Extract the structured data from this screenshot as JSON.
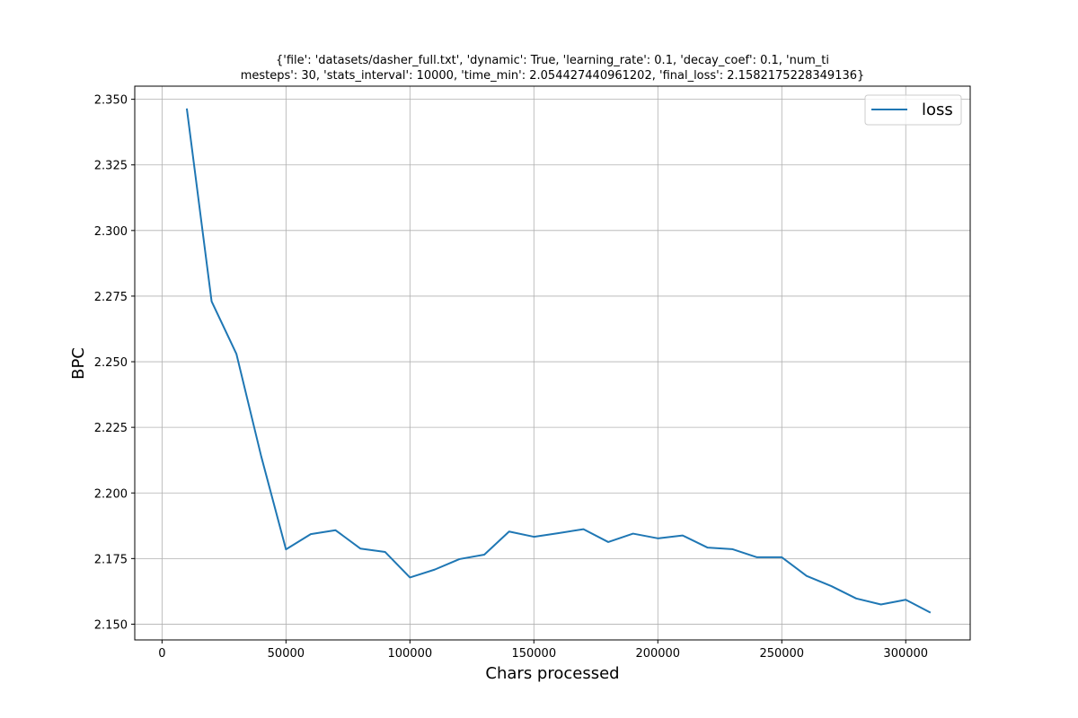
{
  "chart_data": {
    "type": "line",
    "title_lines": [
      "{'file': 'datasets/dasher_full.txt', 'dynamic': True, 'learning_rate': 0.1, 'decay_coef': 0.1, 'num_ti",
      "mesteps': 30, 'stats_interval': 10000, 'time_min': 2.054427440961202, 'final_loss': 2.1582175228349136}"
    ],
    "xlabel": "Chars processed",
    "ylabel": "BPC",
    "xlim": [
      -11000,
      326000
    ],
    "ylim": [
      2.144,
      2.355
    ],
    "xticks": [
      0,
      50000,
      100000,
      150000,
      200000,
      250000,
      300000
    ],
    "xtick_labels": [
      "0",
      "50000",
      "100000",
      "150000",
      "200000",
      "250000",
      "300000"
    ],
    "yticks": [
      2.15,
      2.175,
      2.2,
      2.225,
      2.25,
      2.275,
      2.3,
      2.325,
      2.35
    ],
    "ytick_labels": [
      "2.150",
      "2.175",
      "2.200",
      "2.225",
      "2.250",
      "2.275",
      "2.300",
      "2.325",
      "2.350"
    ],
    "grid": true,
    "legend_position": "upper right",
    "series": [
      {
        "name": "loss",
        "color": "#1f77b4",
        "x": [
          10000,
          20000,
          30000,
          40000,
          50000,
          60000,
          70000,
          80000,
          90000,
          100000,
          110000,
          120000,
          130000,
          140000,
          150000,
          160000,
          170000,
          180000,
          190000,
          200000,
          210000,
          220000,
          230000,
          240000,
          250000,
          260000,
          270000,
          280000,
          290000,
          300000,
          310000
        ],
        "y": [
          2.3465,
          2.273,
          2.253,
          2.214,
          2.1785,
          2.1843,
          2.1858,
          2.1788,
          2.1775,
          2.1678,
          2.1708,
          2.1748,
          2.1765,
          2.1853,
          2.1833,
          2.1847,
          2.1862,
          2.1813,
          2.1845,
          2.1827,
          2.1838,
          2.1792,
          2.1786,
          2.1755,
          2.1755,
          2.1684,
          2.1645,
          2.1598,
          2.1575,
          2.1593,
          2.1544
        ]
      }
    ]
  }
}
